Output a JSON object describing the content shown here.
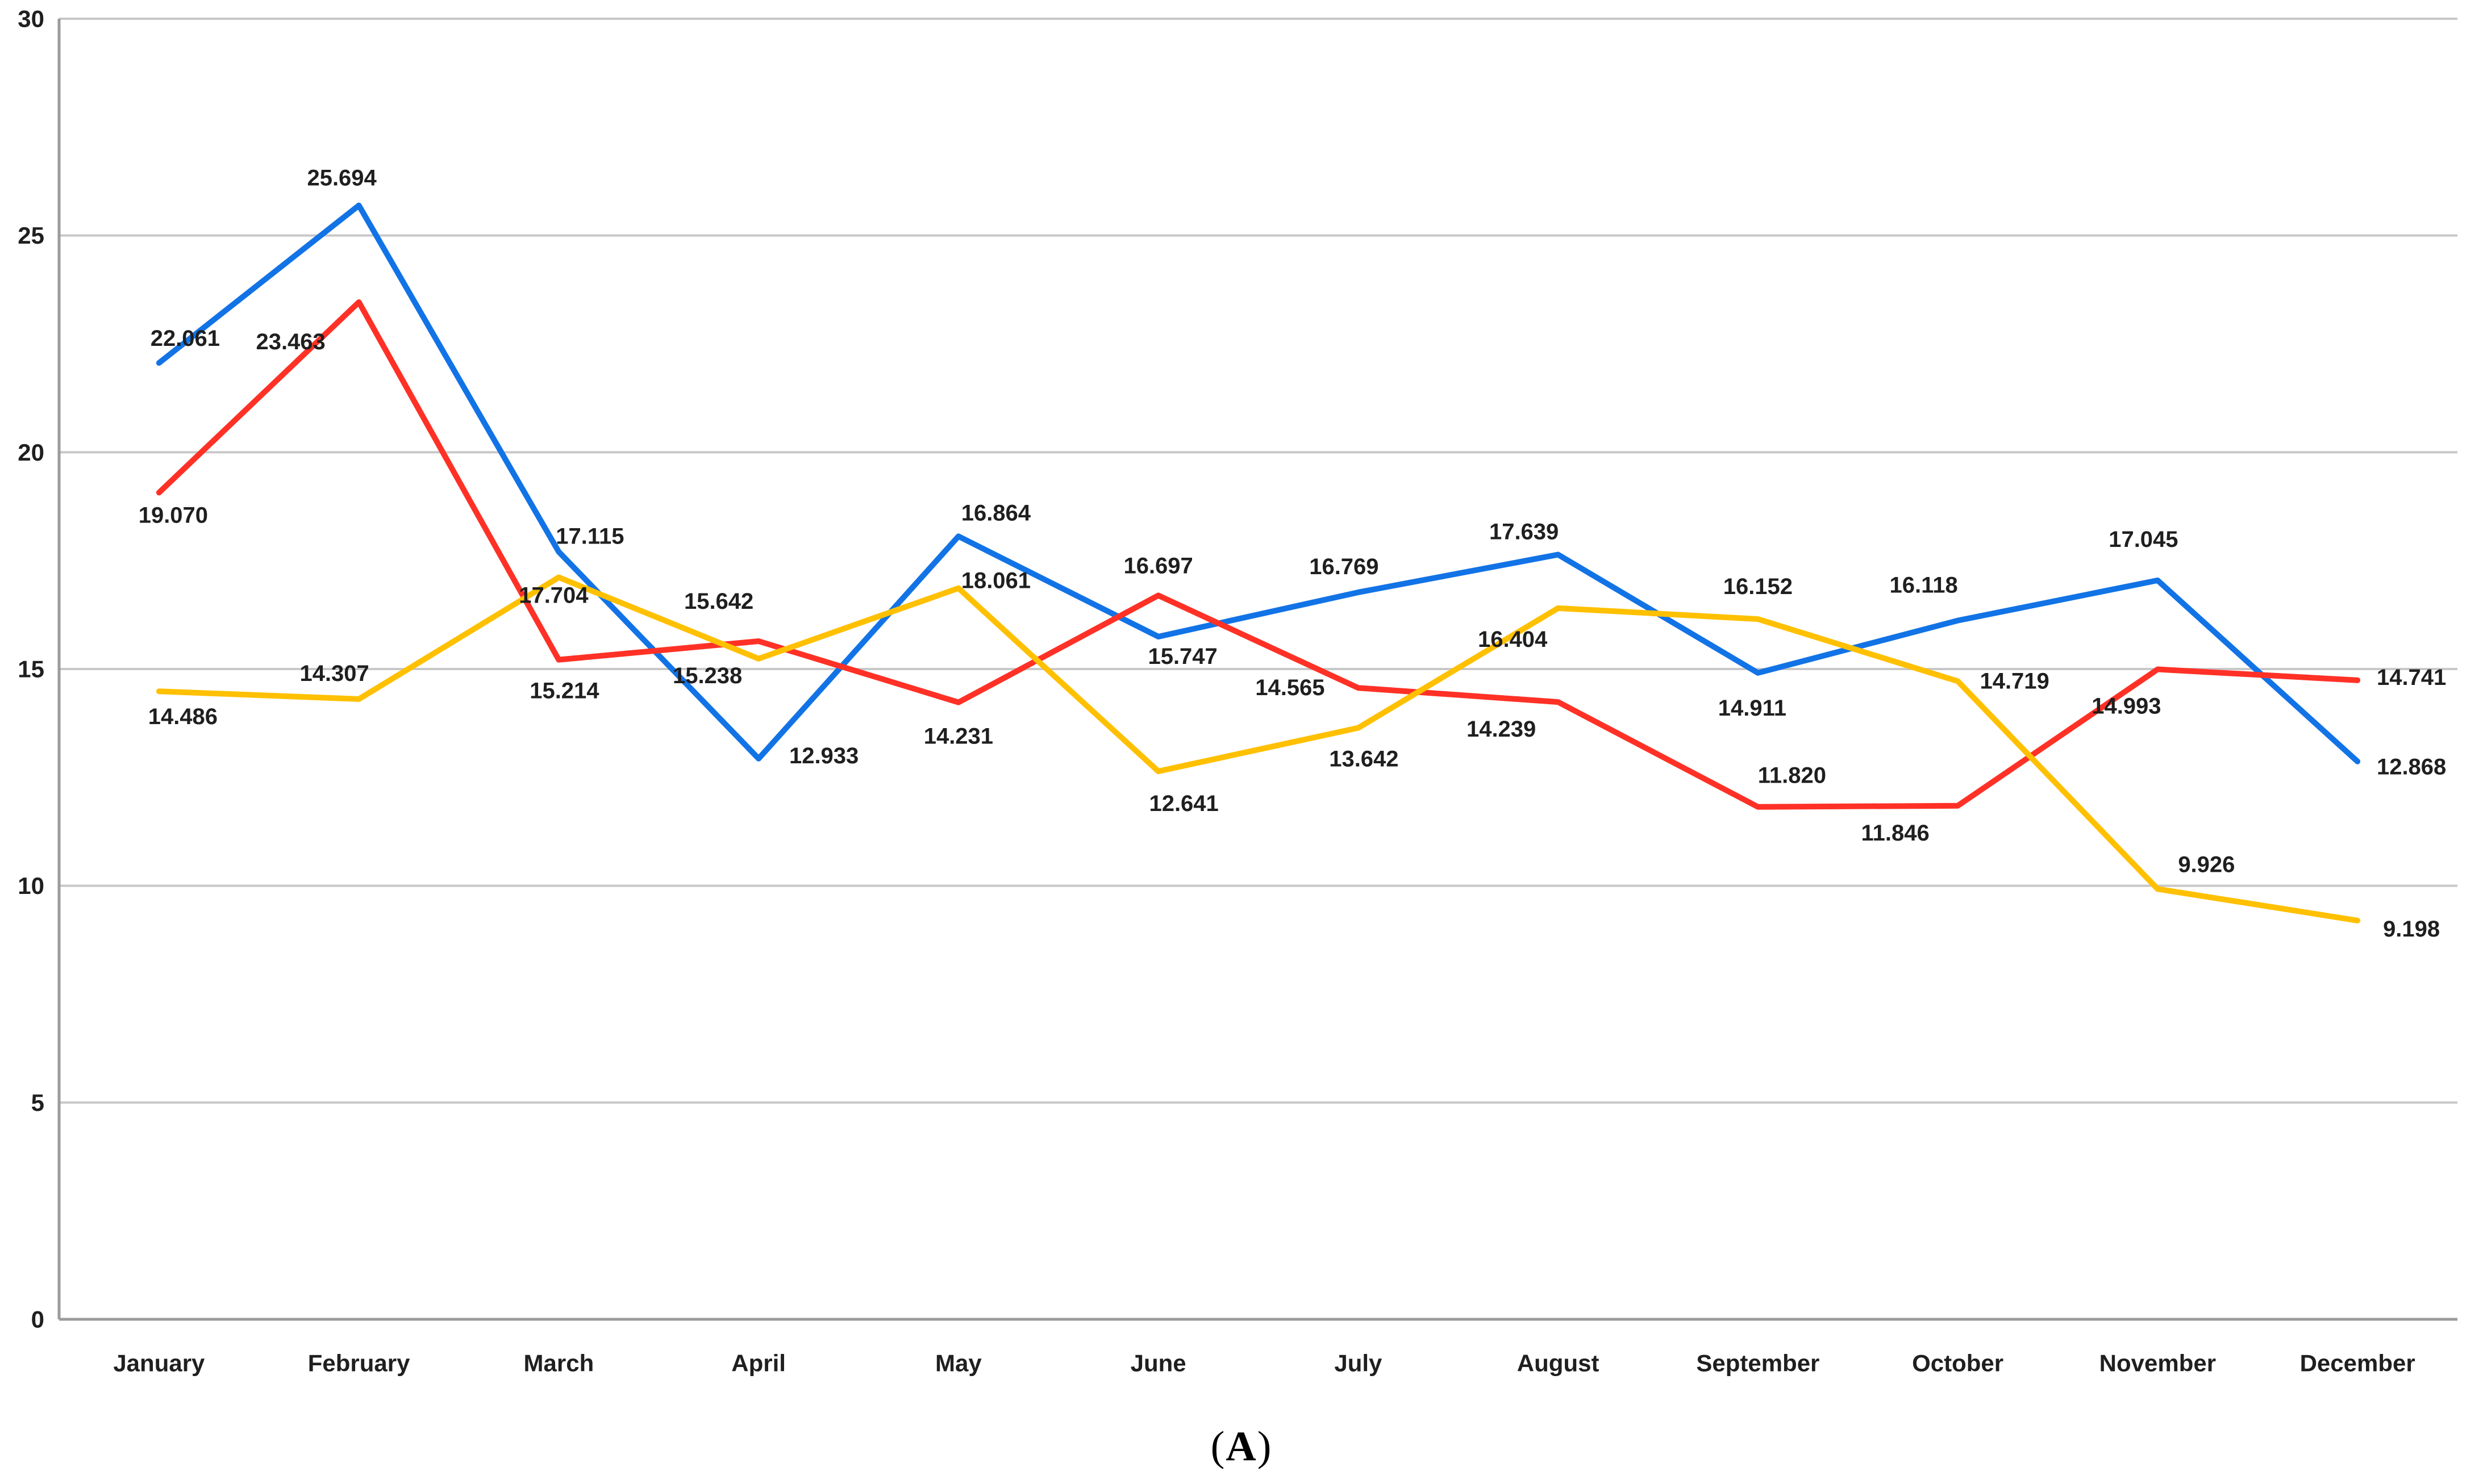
{
  "figure_caption": {
    "open": "(",
    "letter": "A",
    "close": ")"
  },
  "chart_data": {
    "type": "line",
    "title": "",
    "categories": [
      "January",
      "February",
      "March",
      "April",
      "May",
      "June",
      "July",
      "August",
      "September",
      "October",
      "November",
      "December"
    ],
    "y_axis": {
      "min": 0,
      "max": 30,
      "tick_interval": 5,
      "tick_labels": [
        "0",
        "5",
        "10",
        "15",
        "20",
        "25",
        "30"
      ]
    },
    "gridlines": "horizontal",
    "legend": "none",
    "series": [
      {
        "name": "blue-series",
        "color": "#1273E6",
        "values": [
          22.061,
          25.694,
          17.704,
          12.933,
          18.061,
          15.747,
          16.769,
          17.639,
          14.911,
          16.118,
          17.045,
          12.868
        ],
        "point_labels": [
          "22.061",
          "25.694",
          "17.704",
          "12.933",
          "18.061",
          "15.747",
          "16.769",
          "17.639",
          "14.911",
          "16.118",
          "17.045",
          "12.868"
        ],
        "label_offsets": [
          [
            46,
            -43
          ],
          [
            -30,
            -48
          ],
          [
            -9,
            77
          ],
          [
            115,
            -5
          ],
          [
            66,
            78
          ],
          [
            43,
            35
          ],
          [
            -25,
            -45
          ],
          [
            -60,
            -40
          ],
          [
            -10,
            62
          ],
          [
            -60,
            -62
          ],
          [
            -25,
            -72
          ],
          [
            95,
            10
          ]
        ]
      },
      {
        "name": "red-series",
        "color": "#FF3126",
        "values": [
          19.07,
          23.463,
          15.214,
          15.642,
          14.231,
          16.697,
          14.565,
          14.239,
          11.82,
          11.846,
          14.993,
          14.741
        ],
        "point_labels": [
          "19.070",
          "23.463",
          "15.214",
          "15.642",
          "14.231",
          "16.697",
          "14.565",
          "14.239",
          "11.820",
          "11.846",
          "14.993",
          "14.741"
        ],
        "label_offsets": [
          [
            25,
            40
          ],
          [
            -120,
            70
          ],
          [
            10,
            55
          ],
          [
            -70,
            -70
          ],
          [
            0,
            60
          ],
          [
            0,
            -52
          ],
          [
            -120,
            0
          ],
          [
            -100,
            48
          ],
          [
            60,
            -55
          ],
          [
            -110,
            48
          ],
          [
            -55,
            65
          ],
          [
            95,
            -5
          ]
        ]
      },
      {
        "name": "yellow-series",
        "color": "#FFC000",
        "values": [
          14.486,
          14.307,
          17.115,
          15.238,
          16.864,
          12.641,
          13.642,
          16.404,
          16.152,
          14.719,
          9.926,
          9.198
        ],
        "point_labels": [
          "14.486",
          "14.307",
          "17.115",
          "15.238",
          "16.864",
          "12.641",
          "13.642",
          "16.404",
          "16.152",
          "14.719",
          "9.926",
          "9.198"
        ],
        "label_offsets": [
          [
            42,
            45
          ],
          [
            -43,
            -45
          ],
          [
            55,
            -72
          ],
          [
            -90,
            30
          ],
          [
            66,
            -132
          ],
          [
            45,
            57
          ],
          [
            10,
            55
          ],
          [
            -80,
            55
          ],
          [
            0,
            -57
          ],
          [
            100,
            0
          ],
          [
            86,
            -43
          ],
          [
            95,
            15
          ]
        ]
      }
    ],
    "colors": {
      "gridline": "#C8C8C8",
      "axis": "#9B9B9B",
      "text": "#1F1F1F"
    }
  }
}
